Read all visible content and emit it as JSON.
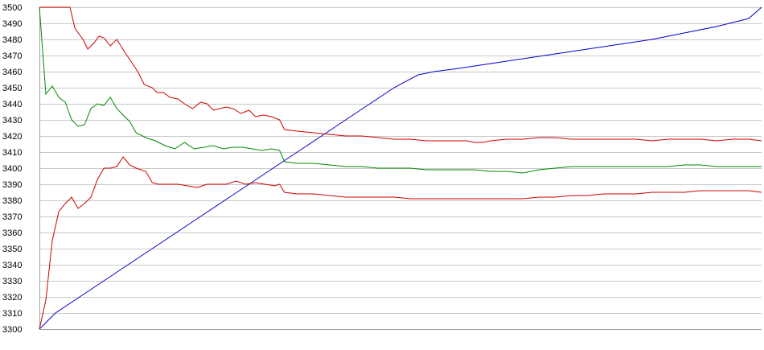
{
  "chart_data": {
    "type": "line",
    "title": "",
    "xlabel": "",
    "ylabel": "",
    "ylim": [
      3300,
      3500
    ],
    "y_ticks": [
      3500,
      3490,
      3480,
      3470,
      3460,
      3450,
      3440,
      3430,
      3420,
      3410,
      3400,
      3390,
      3380,
      3370,
      3360,
      3350,
      3340,
      3330,
      3320,
      3310,
      3300
    ],
    "grid": "horizontal",
    "legend": "none",
    "x_labels_shown": false,
    "xlim": [
      0,
      448
    ],
    "series": [
      {
        "color": "#0000cc",
        "points": [
          [
            0,
            3300
          ],
          [
            10,
            3310
          ],
          [
            25,
            3320
          ],
          [
            40,
            3330
          ],
          [
            55,
            3340
          ],
          [
            70,
            3350
          ],
          [
            85,
            3360
          ],
          [
            100,
            3370
          ],
          [
            115,
            3380
          ],
          [
            130,
            3390
          ],
          [
            145,
            3400
          ],
          [
            160,
            3410
          ],
          [
            175,
            3420
          ],
          [
            190,
            3430
          ],
          [
            205,
            3440
          ],
          [
            220,
            3450
          ],
          [
            235,
            3458
          ],
          [
            245,
            3460
          ],
          [
            260,
            3462
          ],
          [
            280,
            3465
          ],
          [
            300,
            3468
          ],
          [
            320,
            3471
          ],
          [
            340,
            3474
          ],
          [
            360,
            3477
          ],
          [
            380,
            3480
          ],
          [
            400,
            3484
          ],
          [
            420,
            3488
          ],
          [
            440,
            3493
          ],
          [
            448,
            3500
          ]
        ]
      },
      {
        "color": "#cc0000",
        "points": [
          [
            0,
            3500
          ],
          [
            5,
            3500
          ],
          [
            15,
            3500
          ],
          [
            19,
            3500
          ],
          [
            22,
            3487
          ],
          [
            27,
            3480
          ],
          [
            30,
            3474
          ],
          [
            34,
            3478
          ],
          [
            37,
            3482
          ],
          [
            40,
            3481
          ],
          [
            44,
            3476
          ],
          [
            48,
            3480
          ],
          [
            53,
            3472
          ],
          [
            57,
            3466
          ],
          [
            61,
            3460
          ],
          [
            65,
            3452
          ],
          [
            70,
            3450
          ],
          [
            73,
            3447
          ],
          [
            77,
            3447
          ],
          [
            81,
            3444
          ],
          [
            86,
            3443
          ],
          [
            90,
            3440
          ],
          [
            95,
            3437
          ],
          [
            100,
            3441
          ],
          [
            104,
            3440
          ],
          [
            108,
            3436
          ],
          [
            112,
            3437
          ],
          [
            116,
            3438
          ],
          [
            120,
            3437
          ],
          [
            125,
            3434
          ],
          [
            130,
            3436
          ],
          [
            134,
            3432
          ],
          [
            139,
            3433
          ],
          [
            144,
            3432
          ],
          [
            149,
            3430
          ],
          [
            152,
            3424
          ],
          [
            160,
            3423
          ],
          [
            170,
            3422
          ],
          [
            180,
            3421
          ],
          [
            190,
            3420
          ],
          [
            200,
            3420
          ],
          [
            210,
            3419
          ],
          [
            220,
            3418
          ],
          [
            230,
            3418
          ],
          [
            240,
            3417
          ],
          [
            250,
            3417
          ],
          [
            260,
            3417
          ],
          [
            265,
            3417
          ],
          [
            270,
            3416
          ],
          [
            275,
            3416
          ],
          [
            280,
            3417
          ],
          [
            290,
            3418
          ],
          [
            300,
            3418
          ],
          [
            310,
            3419
          ],
          [
            320,
            3419
          ],
          [
            330,
            3418
          ],
          [
            340,
            3418
          ],
          [
            350,
            3418
          ],
          [
            360,
            3418
          ],
          [
            370,
            3418
          ],
          [
            380,
            3417
          ],
          [
            390,
            3418
          ],
          [
            400,
            3418
          ],
          [
            410,
            3418
          ],
          [
            420,
            3417
          ],
          [
            430,
            3418
          ],
          [
            440,
            3418
          ],
          [
            448,
            3417
          ]
        ]
      },
      {
        "color": "#008800",
        "points": [
          [
            0,
            3500
          ],
          [
            4,
            3446
          ],
          [
            8,
            3451
          ],
          [
            12,
            3444
          ],
          [
            16,
            3441
          ],
          [
            20,
            3430
          ],
          [
            24,
            3426
          ],
          [
            28,
            3427
          ],
          [
            32,
            3437
          ],
          [
            36,
            3440
          ],
          [
            40,
            3439
          ],
          [
            44,
            3444
          ],
          [
            48,
            3437
          ],
          [
            52,
            3433
          ],
          [
            56,
            3429
          ],
          [
            60,
            3422
          ],
          [
            66,
            3419
          ],
          [
            72,
            3417
          ],
          [
            78,
            3414
          ],
          [
            84,
            3412
          ],
          [
            90,
            3416
          ],
          [
            96,
            3412
          ],
          [
            102,
            3413
          ],
          [
            108,
            3414
          ],
          [
            114,
            3412
          ],
          [
            120,
            3413
          ],
          [
            126,
            3413
          ],
          [
            132,
            3412
          ],
          [
            138,
            3411
          ],
          [
            144,
            3412
          ],
          [
            149,
            3411
          ],
          [
            152,
            3404
          ],
          [
            160,
            3403
          ],
          [
            170,
            3403
          ],
          [
            180,
            3402
          ],
          [
            190,
            3401
          ],
          [
            200,
            3401
          ],
          [
            210,
            3400
          ],
          [
            220,
            3400
          ],
          [
            230,
            3400
          ],
          [
            240,
            3399
          ],
          [
            250,
            3399
          ],
          [
            260,
            3399
          ],
          [
            270,
            3399
          ],
          [
            280,
            3398
          ],
          [
            290,
            3398
          ],
          [
            300,
            3397
          ],
          [
            310,
            3399
          ],
          [
            320,
            3400
          ],
          [
            330,
            3401
          ],
          [
            340,
            3401
          ],
          [
            350,
            3401
          ],
          [
            360,
            3401
          ],
          [
            370,
            3401
          ],
          [
            380,
            3401
          ],
          [
            390,
            3401
          ],
          [
            400,
            3402
          ],
          [
            410,
            3402
          ],
          [
            420,
            3401
          ],
          [
            430,
            3401
          ],
          [
            440,
            3401
          ],
          [
            448,
            3401
          ]
        ]
      },
      {
        "color": "#cc0000",
        "points": [
          [
            0,
            3300
          ],
          [
            4,
            3318
          ],
          [
            8,
            3355
          ],
          [
            12,
            3373
          ],
          [
            16,
            3378
          ],
          [
            20,
            3382
          ],
          [
            24,
            3375
          ],
          [
            28,
            3378
          ],
          [
            32,
            3382
          ],
          [
            36,
            3393
          ],
          [
            40,
            3400
          ],
          [
            44,
            3400
          ],
          [
            48,
            3401
          ],
          [
            52,
            3407
          ],
          [
            56,
            3402
          ],
          [
            60,
            3400
          ],
          [
            66,
            3398
          ],
          [
            70,
            3391
          ],
          [
            74,
            3390
          ],
          [
            80,
            3390
          ],
          [
            86,
            3390
          ],
          [
            92,
            3389
          ],
          [
            98,
            3388
          ],
          [
            104,
            3390
          ],
          [
            110,
            3390
          ],
          [
            116,
            3390
          ],
          [
            122,
            3392
          ],
          [
            128,
            3390
          ],
          [
            134,
            3391
          ],
          [
            140,
            3390
          ],
          [
            146,
            3389
          ],
          [
            149,
            3390
          ],
          [
            152,
            3385
          ],
          [
            160,
            3384
          ],
          [
            170,
            3384
          ],
          [
            180,
            3383
          ],
          [
            190,
            3382
          ],
          [
            200,
            3382
          ],
          [
            210,
            3382
          ],
          [
            220,
            3382
          ],
          [
            230,
            3381
          ],
          [
            240,
            3381
          ],
          [
            250,
            3381
          ],
          [
            260,
            3381
          ],
          [
            270,
            3381
          ],
          [
            280,
            3381
          ],
          [
            290,
            3381
          ],
          [
            300,
            3381
          ],
          [
            310,
            3382
          ],
          [
            320,
            3382
          ],
          [
            330,
            3383
          ],
          [
            340,
            3383
          ],
          [
            350,
            3384
          ],
          [
            360,
            3384
          ],
          [
            370,
            3384
          ],
          [
            380,
            3385
          ],
          [
            390,
            3385
          ],
          [
            400,
            3385
          ],
          [
            410,
            3386
          ],
          [
            420,
            3386
          ],
          [
            430,
            3386
          ],
          [
            440,
            3386
          ],
          [
            448,
            3385
          ]
        ]
      }
    ]
  }
}
